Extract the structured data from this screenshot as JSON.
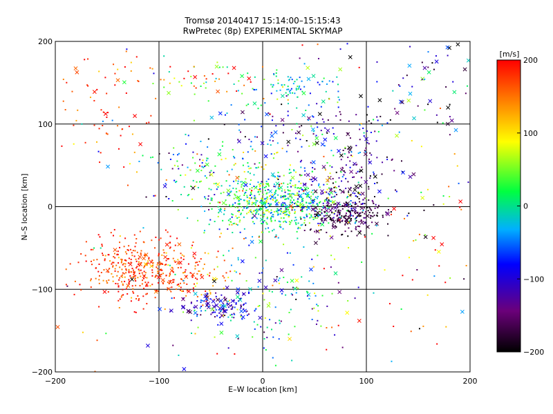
{
  "chart_data": {
    "type": "scatter",
    "title": "Tromsø 20140417 15:14:00–15:15:43",
    "subtitle": "RwPretec (8p) EXPERIMENTAL SKYMAP",
    "xlabel": "E–W location [km]",
    "ylabel": "N–S location [km]",
    "xlim": [
      -200,
      200
    ],
    "ylim": [
      -200,
      200
    ],
    "x_ticks": [
      -200,
      -100,
      0,
      100,
      200
    ],
    "y_ticks": [
      -200,
      -100,
      0,
      100,
      200
    ],
    "x_tick_labels": [
      "−200",
      "−100",
      "0",
      "100",
      "200"
    ],
    "y_tick_labels": [
      "−200",
      "−100",
      "0",
      "100",
      "200"
    ],
    "grid": true,
    "colorbar": {
      "title": "[m/s]",
      "min": -200,
      "max": 200,
      "ticks": [
        200,
        100,
        0,
        -100,
        -200
      ],
      "tick_labels": [
        "200",
        "100",
        "0",
        "−100",
        "−200"
      ],
      "stops": [
        "#000000",
        "#6b007a",
        "#0000ff",
        "#00b0ff",
        "#00ff40",
        "#ffff00",
        "#ff8000",
        "#ff0000"
      ]
    },
    "marker_types": [
      "dot",
      "x"
    ],
    "clusters": [
      {
        "x": 15,
        "y": 3,
        "sx": 32,
        "sy": 14,
        "v": 10,
        "sv": 45,
        "n": 520,
        "xf": 0.04
      },
      {
        "x": 5,
        "y": 15,
        "sx": 45,
        "sy": 25,
        "v": 40,
        "sv": 60,
        "n": 160,
        "xf": 0.05
      },
      {
        "x": 85,
        "y": -10,
        "sx": 18,
        "sy": 12,
        "v": -175,
        "sv": 25,
        "n": 230,
        "xf": 0.15
      },
      {
        "x": 65,
        "y": 15,
        "sx": 25,
        "sy": 20,
        "v": -120,
        "sv": 35,
        "n": 100,
        "xf": 0.12
      },
      {
        "x": 90,
        "y": 50,
        "sx": 25,
        "sy": 25,
        "v": -140,
        "sv": 50,
        "n": 90,
        "xf": 0.25
      },
      {
        "x": 40,
        "y": 95,
        "sx": 45,
        "sy": 15,
        "v": -90,
        "sv": 70,
        "n": 110,
        "xf": 0.18
      },
      {
        "x": 25,
        "y": 145,
        "sx": 25,
        "sy": 12,
        "v": -20,
        "sv": 40,
        "n": 90,
        "xf": 0.06
      },
      {
        "x": -70,
        "y": 155,
        "sx": 40,
        "sy": 15,
        "v": 120,
        "sv": 90,
        "n": 60,
        "xf": 0.1
      },
      {
        "x": -125,
        "y": -75,
        "sx": 25,
        "sy": 22,
        "v": 175,
        "sv": 25,
        "n": 300,
        "xf": 0.06
      },
      {
        "x": -80,
        "y": -80,
        "sx": 28,
        "sy": 18,
        "v": 165,
        "sv": 40,
        "n": 150,
        "xf": 0.08
      },
      {
        "x": -40,
        "y": -120,
        "sx": 20,
        "sy": 10,
        "v": -110,
        "sv": 40,
        "n": 120,
        "xf": 0.35
      },
      {
        "x": 10,
        "y": -110,
        "sx": 35,
        "sy": 35,
        "v": -10,
        "sv": 80,
        "n": 150,
        "xf": 0.12
      },
      {
        "x": -50,
        "y": 45,
        "sx": 35,
        "sy": 20,
        "v": 10,
        "sv": 90,
        "n": 110,
        "xf": 0.05
      },
      {
        "x": -150,
        "y": 120,
        "sx": 25,
        "sy": 40,
        "v": 180,
        "sv": 30,
        "n": 60,
        "xf": 0.15
      },
      {
        "x": 150,
        "y": 150,
        "sx": 35,
        "sy": 35,
        "v": -90,
        "sv": 90,
        "n": 70,
        "xf": 0.35
      },
      {
        "x": 160,
        "y": -60,
        "sx": 35,
        "sy": 60,
        "v": 110,
        "sv": 120,
        "n": 45,
        "xf": 0.25
      },
      {
        "x": 0,
        "y": 0,
        "sx": 110,
        "sy": 110,
        "v": 30,
        "sv": 120,
        "n": 160,
        "xf": 0.12
      }
    ]
  }
}
